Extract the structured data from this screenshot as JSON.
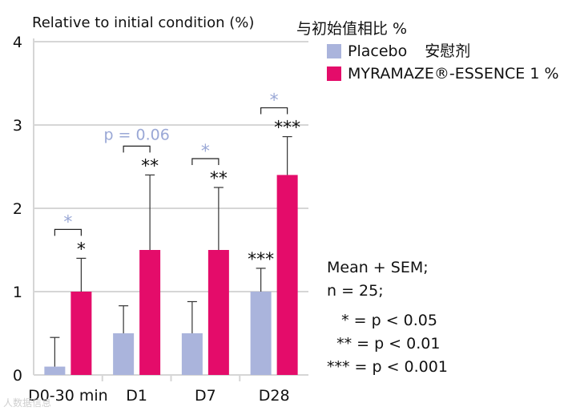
{
  "chart_data": {
    "type": "bar",
    "ylabel": "Relative to initial condition (%)",
    "ylabel_zh": "与初始值相比 %",
    "ylim": [
      0,
      4
    ],
    "yticks": [
      0,
      1,
      2,
      3,
      4
    ],
    "grid": true,
    "categories": [
      "D0-30 min",
      "D1",
      "D7",
      "D28"
    ],
    "series": [
      {
        "name": "Placebo",
        "name_zh": "安慰剂",
        "color": "#aab4dc",
        "values": [
          0.1,
          0.5,
          0.5,
          1.0
        ],
        "sem": [
          0.35,
          0.33,
          0.38,
          0.28
        ],
        "sig_labels": [
          "",
          "",
          "",
          "***"
        ]
      },
      {
        "name": "MYRAMAZE®-ESSENCE 1 %",
        "color": "#e40c6a",
        "values": [
          1.0,
          1.5,
          1.5,
          2.4
        ],
        "sem": [
          0.4,
          0.9,
          0.75,
          0.46
        ],
        "sig_labels": [
          "*",
          "**",
          "**",
          "***"
        ]
      }
    ],
    "comparison_labels": [
      "*",
      "p = 0.06",
      "*",
      "*"
    ],
    "comparison_color": "#9aa8d6"
  },
  "stats_lines": [
    "Mean + SEM;",
    "n = 25;",
    "   * = p < 0.05",
    "  ** = p < 0.01",
    "*** = p < 0.001"
  ],
  "watermark": "人数据信息"
}
